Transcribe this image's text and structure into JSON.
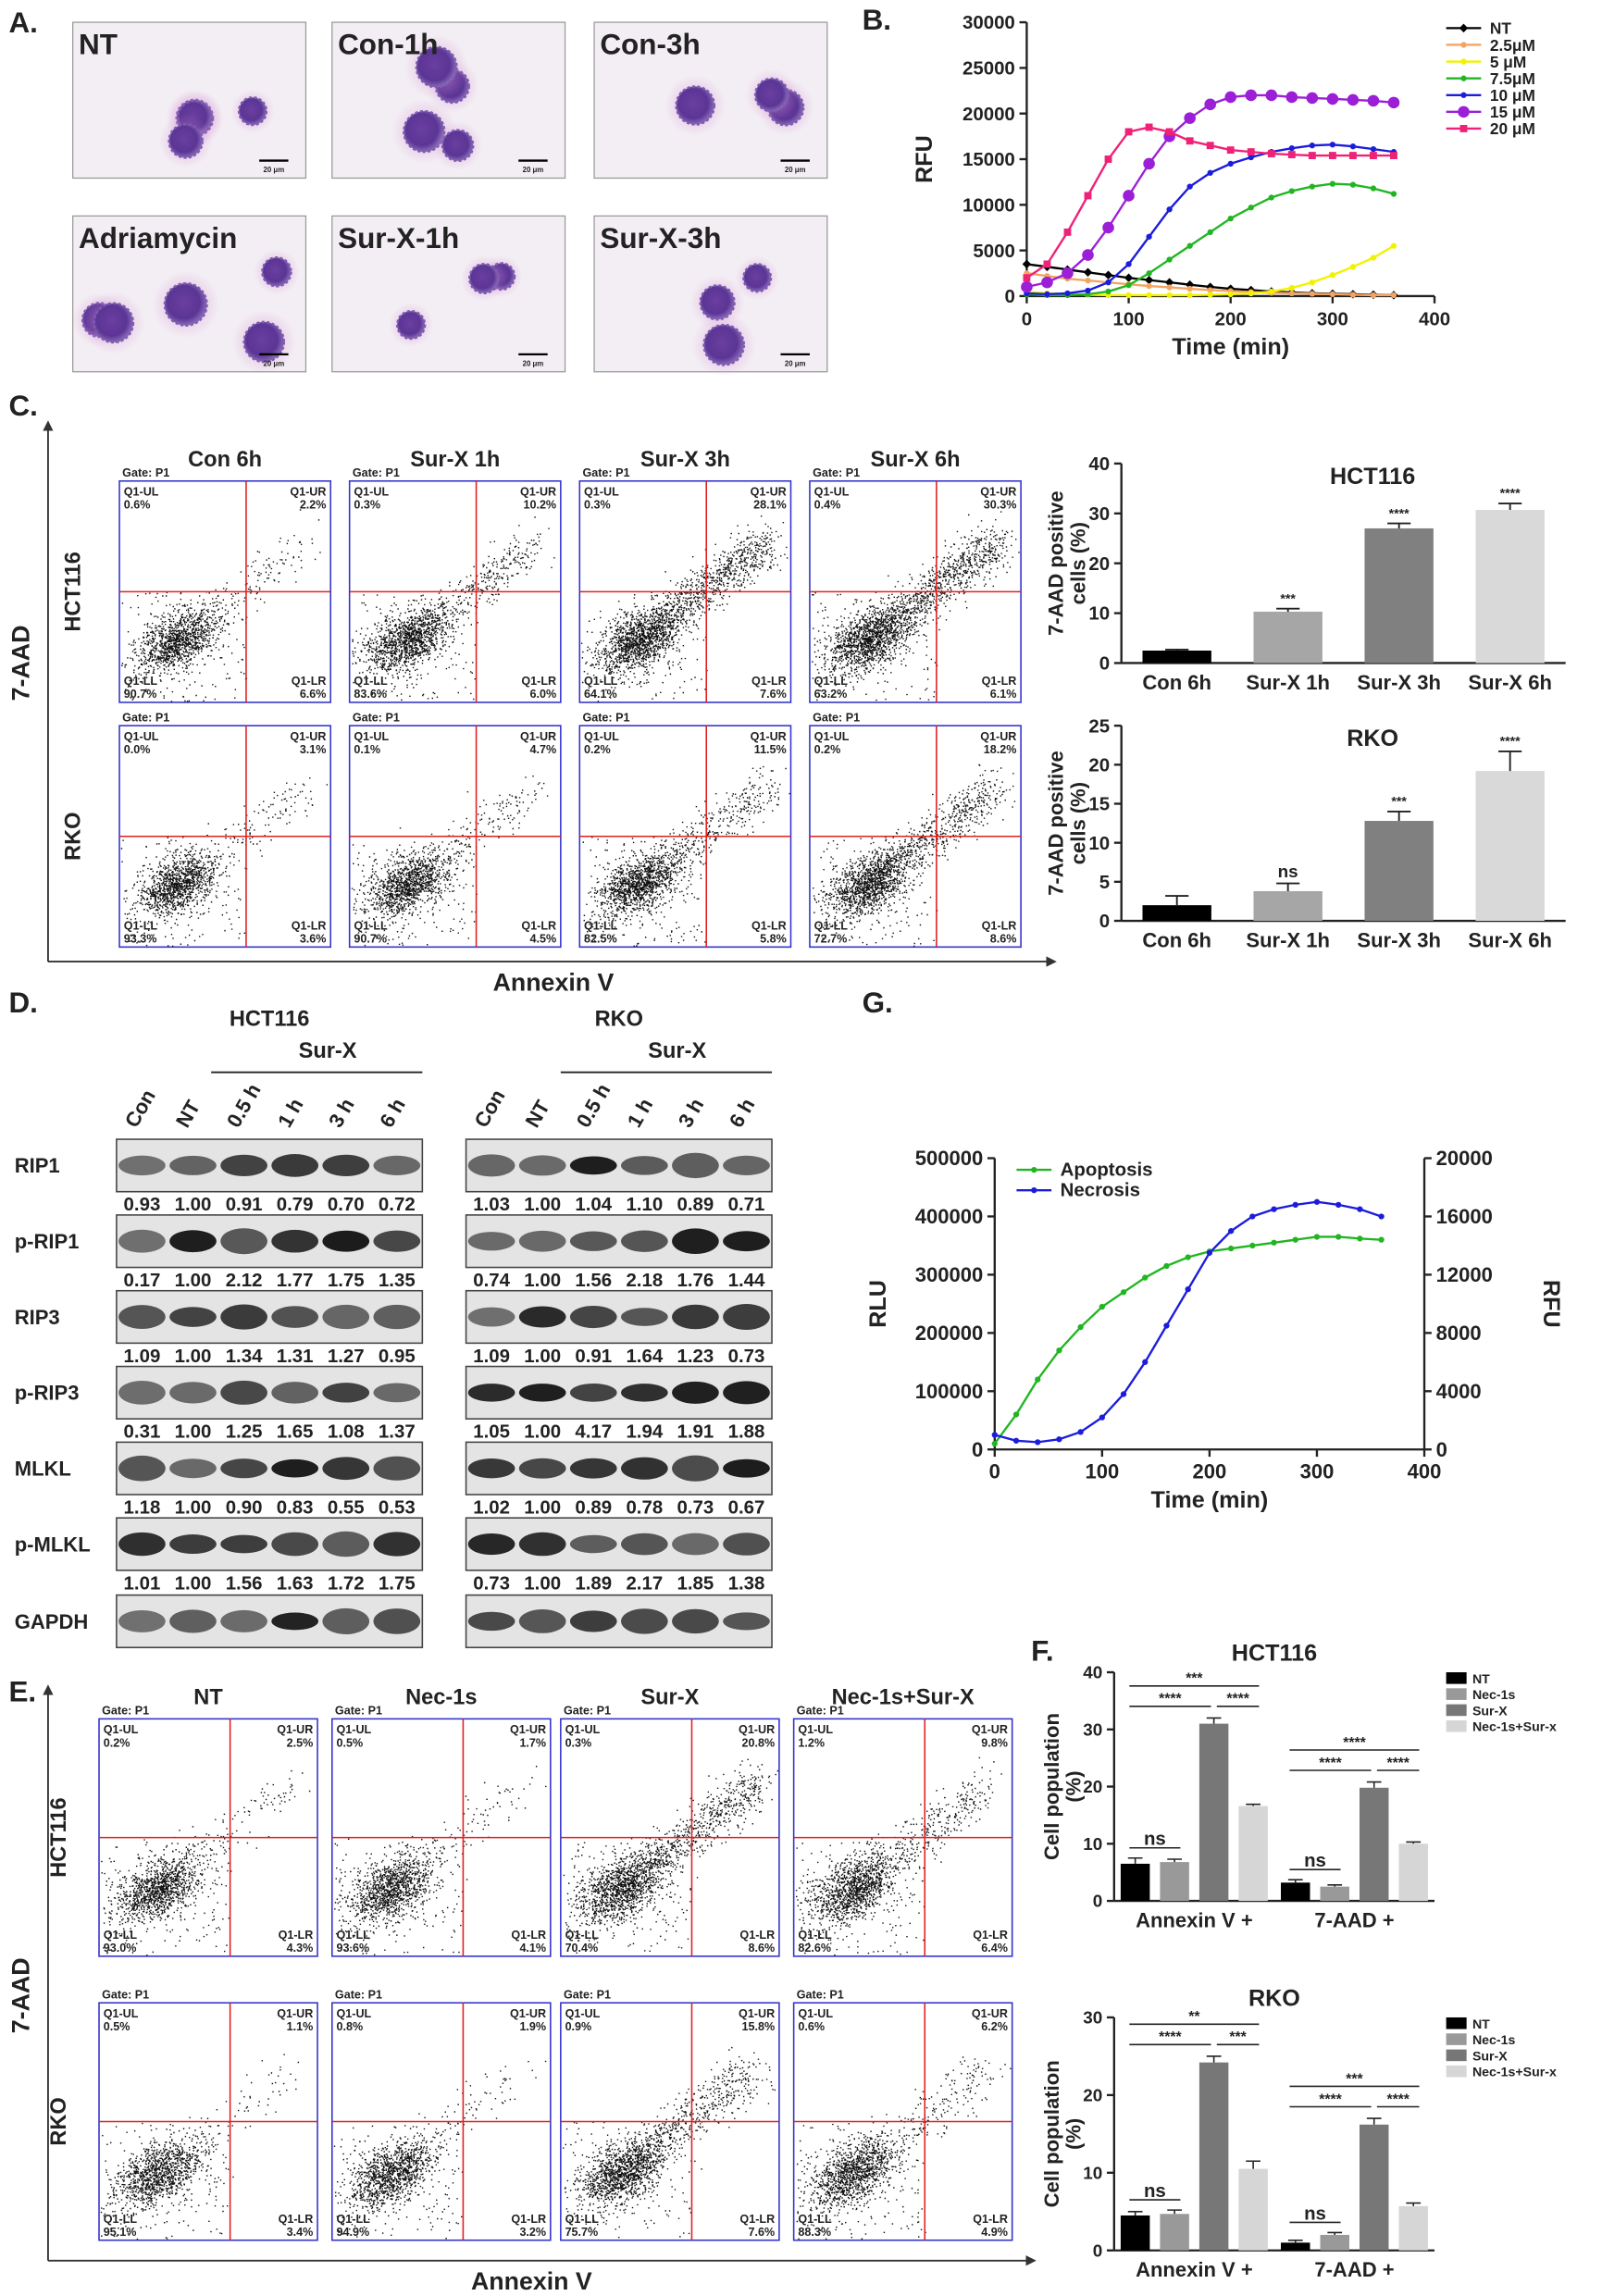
{
  "panel_labels": {
    "A": "A.",
    "B": "B.",
    "C": "C.",
    "D": "D.",
    "E": "E.",
    "F": "F.",
    "G": "G."
  },
  "micrographs": {
    "labels": [
      "NT",
      "Con-1h",
      "Con-3h",
      "Adriamycin",
      "Sur-X-1h",
      "Sur-X-3h"
    ],
    "scale_bar": "20 μm"
  },
  "flow_c": {
    "x_axis": "Annexin V",
    "y_axis": "7-AAD",
    "gate": "Gate: P1",
    "quadrants": [
      "Q1-UL",
      "Q1-UR",
      "Q1-LL",
      "Q1-LR"
    ],
    "columns": [
      "Con 6h",
      "Sur-X 1h",
      "Sur-X 3h",
      "Sur-X 6h"
    ],
    "rows": [
      {
        "name": "HCT116",
        "plots": [
          [
            "0.6%",
            "2.2%",
            "90.7%",
            "6.6%"
          ],
          [
            "0.3%",
            "10.2%",
            "83.6%",
            "6.0%"
          ],
          [
            "0.3%",
            "28.1%",
            "64.1%",
            "7.6%"
          ],
          [
            "0.4%",
            "30.3%",
            "63.2%",
            "6.1%"
          ]
        ]
      },
      {
        "name": "RKO",
        "plots": [
          [
            "0.0%",
            "3.1%",
            "93.3%",
            "3.6%"
          ],
          [
            "0.1%",
            "4.7%",
            "90.7%",
            "4.5%"
          ],
          [
            "0.2%",
            "11.5%",
            "82.5%",
            "5.8%"
          ],
          [
            "0.2%",
            "18.2%",
            "72.7%",
            "8.6%"
          ]
        ]
      }
    ]
  },
  "flow_e": {
    "x_axis": "Annexin V",
    "y_axis": "7-AAD",
    "gate": "Gate: P1",
    "quadrants": [
      "Q1-UL",
      "Q1-UR",
      "Q1-LL",
      "Q1-LR"
    ],
    "columns": [
      "NT",
      "Nec-1s",
      "Sur-X",
      "Nec-1s+Sur-X"
    ],
    "rows": [
      {
        "name": "HCT116",
        "plots": [
          [
            "0.2%",
            "2.5%",
            "93.0%",
            "4.3%"
          ],
          [
            "0.5%",
            "1.7%",
            "93.6%",
            "4.1%"
          ],
          [
            "0.3%",
            "20.8%",
            "70.4%",
            "8.6%"
          ],
          [
            "1.2%",
            "9.8%",
            "82.6%",
            "6.4%"
          ]
        ]
      },
      {
        "name": "RKO",
        "plots": [
          [
            "0.5%",
            "1.1%",
            "95.1%",
            "3.4%"
          ],
          [
            "0.8%",
            "1.9%",
            "94.9%",
            "3.2%"
          ],
          [
            "0.9%",
            "15.8%",
            "75.7%",
            "7.6%"
          ],
          [
            "0.6%",
            "6.2%",
            "88.3%",
            "4.9%"
          ]
        ]
      }
    ]
  },
  "western": {
    "rows": [
      "RIP1",
      "p-RIP1",
      "RIP3",
      "p-RIP3",
      "MLKL",
      "p-MLKL",
      "GAPDH"
    ],
    "groups": [
      {
        "cell_line": "HCT116",
        "treatment": "Sur-X",
        "lanes": [
          "Con",
          "NT",
          "0.5 h",
          "1 h",
          "3 h",
          "6 h"
        ],
        "quant": [
          [
            "0.93",
            "1.00",
            "0.91",
            "0.79",
            "0.70",
            "0.72"
          ],
          [
            "0.17",
            "1.00",
            "2.12",
            "1.77",
            "1.75",
            "1.35"
          ],
          [
            "1.09",
            "1.00",
            "1.34",
            "1.31",
            "1.27",
            "0.95"
          ],
          [
            "0.31",
            "1.00",
            "1.25",
            "1.65",
            "1.08",
            "1.37"
          ],
          [
            "1.18",
            "1.00",
            "0.90",
            "0.83",
            "0.55",
            "0.53"
          ],
          [
            "1.01",
            "1.00",
            "1.56",
            "1.63",
            "1.72",
            "1.75"
          ]
        ]
      },
      {
        "cell_line": "RKO",
        "treatment": "Sur-X",
        "lanes": [
          "Con",
          "NT",
          "0.5 h",
          "1 h",
          "3 h",
          "6 h"
        ],
        "quant": [
          [
            "1.03",
            "1.00",
            "1.04",
            "1.10",
            "0.89",
            "0.71"
          ],
          [
            "0.74",
            "1.00",
            "1.56",
            "2.18",
            "1.76",
            "1.44"
          ],
          [
            "1.09",
            "1.00",
            "0.91",
            "1.64",
            "1.23",
            "0.73"
          ],
          [
            "1.05",
            "1.00",
            "4.17",
            "1.94",
            "1.91",
            "1.88"
          ],
          [
            "1.02",
            "1.00",
            "0.89",
            "0.78",
            "0.73",
            "0.67"
          ],
          [
            "0.73",
            "1.00",
            "1.89",
            "2.17",
            "1.85",
            "1.38"
          ]
        ]
      }
    ]
  },
  "chart_data": [
    {
      "type": "line",
      "ylabel": "RFU",
      "xlabel": "Time (min)",
      "legend": "upper right",
      "x": [
        0,
        20,
        40,
        60,
        80,
        100,
        120,
        140,
        160,
        180,
        200,
        220,
        240,
        260,
        280,
        300,
        320,
        340,
        360
      ],
      "xlim": [
        0,
        400
      ],
      "xticks": [
        0,
        100,
        200,
        300,
        400
      ],
      "ylim": [
        0,
        30000
      ],
      "yticks": [
        0,
        5000,
        10000,
        15000,
        20000,
        25000,
        30000
      ],
      "series": [
        {
          "name": "NT",
          "color": "#000000",
          "marker": "diamond",
          "values": [
            3500,
            3200,
            2900,
            2600,
            2300,
            2000,
            1750,
            1500,
            1250,
            1000,
            800,
            650,
            500,
            400,
            300,
            250,
            200,
            150,
            100
          ]
        },
        {
          "name": "2.5μM",
          "color": "#f4a460",
          "marker": "circle",
          "values": [
            2500,
            2200,
            1900,
            1700,
            1500,
            1300,
            1100,
            950,
            800,
            650,
            550,
            450,
            350,
            300,
            250,
            200,
            150,
            100,
            100
          ]
        },
        {
          "name": "5 μM",
          "color": "#f2f200",
          "marker": "circle",
          "values": [
            500,
            300,
            200,
            150,
            100,
            100,
            100,
            100,
            100,
            150,
            200,
            300,
            500,
            900,
            1500,
            2300,
            3200,
            4200,
            5500
          ]
        },
        {
          "name": "7.5μM",
          "color": "#22b522",
          "marker": "circle",
          "values": [
            200,
            100,
            100,
            200,
            500,
            1200,
            2500,
            4000,
            5500,
            7000,
            8500,
            9700,
            10800,
            11500,
            12000,
            12300,
            12200,
            11800,
            11200
          ]
        },
        {
          "name": "10 μM",
          "color": "#1c1cdc",
          "marker": "circle",
          "values": [
            300,
            200,
            300,
            600,
            1500,
            3500,
            6500,
            9500,
            12000,
            13500,
            14500,
            15200,
            15800,
            16200,
            16500,
            16600,
            16400,
            16100,
            15800
          ]
        },
        {
          "name": "15 μM",
          "color": "#9b1fd6",
          "marker": "big-circle",
          "values": [
            1000,
            1500,
            2500,
            4500,
            7500,
            11000,
            14500,
            17500,
            19500,
            21000,
            21800,
            22000,
            22000,
            21800,
            21700,
            21600,
            21500,
            21400,
            21200
          ]
        },
        {
          "name": "20 μM",
          "color": "#ee2277",
          "marker": "square",
          "values": [
            2000,
            3500,
            7000,
            11000,
            15000,
            18000,
            18500,
            18000,
            17000,
            16500,
            16000,
            15800,
            15600,
            15500,
            15400,
            15400,
            15400,
            15400,
            15400
          ]
        }
      ]
    },
    {
      "type": "bar",
      "title": "HCT116",
      "ylabel": [
        "7-AAD positive",
        "cells (%)"
      ],
      "categories": [
        "Con 6h",
        "Sur-X 1h",
        "Sur-X 3h",
        "Sur-X 6h"
      ],
      "values": [
        2.5,
        10.3,
        27,
        30.7
      ],
      "errors": [
        0.2,
        0.6,
        1.0,
        1.3
      ],
      "colors": [
        "#000000",
        "#a6a6a6",
        "#808080",
        "#d9d9d9"
      ],
      "significance": [
        null,
        "***",
        "****",
        "****"
      ],
      "ylim": [
        0,
        40
      ],
      "yticks": [
        0,
        10,
        20,
        30,
        40
      ]
    },
    {
      "type": "bar",
      "title": "RKO",
      "ylabel": [
        "7-AAD positive",
        "cells (%)"
      ],
      "categories": [
        "Con 6h",
        "Sur-X 1h",
        "Sur-X 3h",
        "Sur-X 6h"
      ],
      "values": [
        2.0,
        3.8,
        12.8,
        19.2
      ],
      "errors": [
        1.2,
        1.0,
        1.2,
        2.5
      ],
      "colors": [
        "#000000",
        "#a6a6a6",
        "#808080",
        "#d9d9d9"
      ],
      "significance": [
        null,
        "ns",
        "***",
        "****"
      ],
      "ylim": [
        0,
        25
      ],
      "yticks": [
        0,
        5,
        10,
        15,
        20,
        25
      ]
    },
    {
      "type": "line",
      "ylabel": "RLU",
      "y2label": "RFU",
      "xlabel": "Time (min)",
      "legend": "upper left",
      "x": [
        0,
        20,
        40,
        60,
        80,
        100,
        120,
        140,
        160,
        180,
        200,
        220,
        240,
        260,
        280,
        300,
        320,
        340,
        360
      ],
      "xlim": [
        0,
        400
      ],
      "xticks": [
        0,
        100,
        200,
        300,
        400
      ],
      "ylim": [
        0,
        500000
      ],
      "yticks": [
        0,
        100000,
        200000,
        300000,
        400000,
        500000
      ],
      "y2lim": [
        0,
        20000
      ],
      "y2ticks": [
        0,
        4000,
        8000,
        12000,
        16000,
        20000
      ],
      "series": [
        {
          "name": "Apoptosis",
          "color": "#22b522",
          "marker": "circle",
          "values": [
            10000,
            60000,
            120000,
            170000,
            210000,
            245000,
            270000,
            295000,
            315000,
            330000,
            340000,
            345000,
            350000,
            355000,
            360000,
            365000,
            365000,
            362000,
            360000
          ]
        },
        {
          "name": "Necrosis",
          "color": "#1c1cdc",
          "marker": "circle",
          "axis": "y2",
          "values": [
            1000,
            600,
            500,
            700,
            1200,
            2200,
            3800,
            6000,
            8500,
            11000,
            13500,
            15000,
            16000,
            16500,
            16800,
            17000,
            16800,
            16500,
            16000
          ]
        }
      ]
    },
    {
      "type": "grouped_bar",
      "title": "HCT116",
      "ylabel": [
        "Cell  population",
        "(%)"
      ],
      "legend": "upper right",
      "categories": [
        "Annexin V +",
        "7-AAD +"
      ],
      "series": [
        {
          "name": "NT",
          "color": "#000000",
          "values": [
            6.5,
            3.2
          ],
          "errors": [
            1.0,
            0.5
          ]
        },
        {
          "name": "Nec-1s",
          "color": "#999999",
          "values": [
            6.8,
            2.5
          ],
          "errors": [
            0.5,
            0.3
          ]
        },
        {
          "name": "Sur-X",
          "color": "#777777",
          "values": [
            31,
            19.8
          ],
          "errors": [
            1.0,
            1.0
          ]
        },
        {
          "name": "Nec-1s+Sur-x",
          "color": "#d6d6d6",
          "values": [
            16.6,
            10
          ],
          "errors": [
            0.3,
            0.3
          ]
        }
      ],
      "significance": [
        [
          "ns",
          "****",
          "****",
          "***"
        ],
        [
          "ns",
          "****",
          "****",
          "****"
        ]
      ],
      "ylim": [
        0,
        40
      ],
      "yticks": [
        0,
        10,
        20,
        30,
        40
      ]
    },
    {
      "type": "grouped_bar",
      "title": "RKO",
      "ylabel": [
        "Cell  population",
        "(%)"
      ],
      "legend": "upper right",
      "categories": [
        "Annexin V +",
        "7-AAD +"
      ],
      "series": [
        {
          "name": "NT",
          "color": "#000000",
          "values": [
            4.5,
            1.0
          ],
          "errors": [
            0.5,
            0.3
          ]
        },
        {
          "name": "Nec-1s",
          "color": "#999999",
          "values": [
            4.7,
            2.0
          ],
          "errors": [
            0.5,
            0.3
          ]
        },
        {
          "name": "Sur-X",
          "color": "#777777",
          "values": [
            24.2,
            16.2
          ],
          "errors": [
            0.8,
            0.8
          ]
        },
        {
          "name": "Nec-1s+Sur-x",
          "color": "#d6d6d6",
          "values": [
            10.5,
            5.7
          ],
          "errors": [
            1.0,
            0.4
          ]
        }
      ],
      "significance": [
        [
          "ns",
          "****",
          "***",
          "**"
        ],
        [
          "ns",
          "****",
          "****",
          "***"
        ]
      ],
      "ylim": [
        0,
        30
      ],
      "yticks": [
        0,
        10,
        20,
        30
      ]
    }
  ]
}
